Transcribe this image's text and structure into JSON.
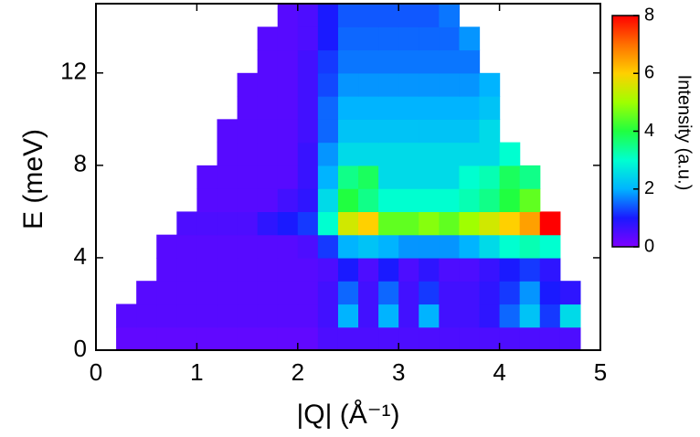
{
  "chart_data": {
    "type": "heatmap",
    "xlabel": "|Q| (Å⁻¹)",
    "ylabel": "E (meV)",
    "colorbar_label": "Intensity (a.u.)",
    "xlim": [
      0,
      5
    ],
    "ylim": [
      0,
      15
    ],
    "xticks": [
      0,
      1,
      2,
      3,
      4,
      5
    ],
    "yticks": [
      0,
      4,
      8,
      12
    ],
    "clim": [
      0,
      8
    ],
    "cticks": [
      0,
      2,
      4,
      6,
      8
    ],
    "colormap": [
      "#7f00ff",
      "#1a1aff",
      "#00b4ff",
      "#00ffd0",
      "#20ff40",
      "#a0ff00",
      "#ffd000",
      "#ff7000",
      "#ff0000"
    ],
    "xbins": [
      0.2,
      0.4,
      0.6,
      0.8,
      1.0,
      1.2,
      1.4,
      1.6,
      1.8,
      2.0,
      2.2,
      2.4,
      2.6,
      2.8,
      3.0,
      3.2,
      3.4,
      3.6,
      3.8,
      4.0,
      4.2,
      4.4,
      4.6,
      4.8
    ],
    "ybins": [
      0,
      1,
      2,
      3,
      4,
      5,
      6,
      7,
      8,
      9,
      10,
      11,
      12,
      13,
      14,
      15
    ],
    "z": [
      [
        0.3,
        0.3,
        0.3,
        0.3,
        0.3,
        0.3,
        0.3,
        0.3,
        0.3,
        0.3,
        0.5,
        0.5,
        0.5,
        0.5,
        0.5,
        0.5,
        0.5,
        0.5,
        0.5,
        0.5,
        0.5,
        0.5,
        0.5
      ],
      [
        0.4,
        0.4,
        0.4,
        0.4,
        0.4,
        0.4,
        0.4,
        0.4,
        0.4,
        0.4,
        0.6,
        2.0,
        0.6,
        2.0,
        0.6,
        2.0,
        0.6,
        0.6,
        0.8,
        1.5,
        2.2,
        1.2,
        2.5
      ],
      [
        null,
        0.4,
        0.4,
        0.4,
        0.4,
        0.4,
        0.4,
        0.4,
        0.4,
        0.4,
        0.6,
        1.5,
        0.6,
        1.5,
        0.6,
        1.2,
        0.6,
        0.6,
        0.8,
        1.2,
        1.8,
        1.0,
        0.8
      ],
      [
        null,
        null,
        0.4,
        0.4,
        0.4,
        0.4,
        0.4,
        0.4,
        0.4,
        0.4,
        0.5,
        1.0,
        0.5,
        1.0,
        0.5,
        0.8,
        0.5,
        0.5,
        0.7,
        1.0,
        1.2,
        0.8,
        null
      ],
      [
        null,
        null,
        0.4,
        0.4,
        0.4,
        0.4,
        0.4,
        0.4,
        0.4,
        0.5,
        1.2,
        2.0,
        2.2,
        2.0,
        1.8,
        1.8,
        1.8,
        2.0,
        2.5,
        3.0,
        3.2,
        3.0,
        null
      ],
      [
        null,
        null,
        null,
        0.5,
        0.5,
        0.5,
        0.5,
        0.8,
        1.0,
        1.2,
        3.0,
        5.5,
        6.0,
        4.5,
        4.5,
        4.8,
        4.5,
        5.0,
        5.5,
        6.0,
        6.5,
        8.0,
        null
      ],
      [
        null,
        null,
        null,
        null,
        0.4,
        0.4,
        0.4,
        0.4,
        0.6,
        0.8,
        2.5,
        4.0,
        3.5,
        3.0,
        3.0,
        3.0,
        3.0,
        3.2,
        3.5,
        4.0,
        4.5,
        null,
        null
      ],
      [
        null,
        null,
        null,
        null,
        0.4,
        0.4,
        0.4,
        0.4,
        0.4,
        0.7,
        2.0,
        3.5,
        3.8,
        2.5,
        2.5,
        2.5,
        2.5,
        3.0,
        3.2,
        3.8,
        3.5,
        null,
        null
      ],
      [
        null,
        null,
        null,
        null,
        null,
        0.4,
        0.4,
        0.4,
        0.4,
        0.7,
        1.8,
        2.5,
        2.5,
        2.5,
        2.5,
        2.5,
        2.5,
        2.5,
        2.5,
        3.0,
        null,
        null,
        null
      ],
      [
        null,
        null,
        null,
        null,
        null,
        0.4,
        0.4,
        0.4,
        0.4,
        0.6,
        1.5,
        2.2,
        2.2,
        2.2,
        2.2,
        2.2,
        2.2,
        2.2,
        2.5,
        null,
        null,
        null,
        null
      ],
      [
        null,
        null,
        null,
        null,
        null,
        null,
        0.4,
        0.4,
        0.4,
        0.6,
        1.5,
        2.0,
        2.0,
        2.0,
        2.0,
        2.0,
        2.0,
        2.0,
        2.2,
        null,
        null,
        null,
        null
      ],
      [
        null,
        null,
        null,
        null,
        null,
        null,
        0.4,
        0.4,
        0.4,
        0.6,
        1.3,
        1.8,
        1.8,
        1.8,
        1.8,
        1.8,
        1.8,
        1.8,
        2.0,
        null,
        null,
        null,
        null
      ],
      [
        null,
        null,
        null,
        null,
        null,
        null,
        null,
        0.4,
        0.4,
        0.6,
        1.2,
        1.6,
        1.6,
        1.6,
        1.6,
        1.6,
        1.6,
        1.6,
        null,
        null,
        null,
        null,
        null
      ],
      [
        null,
        null,
        null,
        null,
        null,
        null,
        null,
        0.4,
        0.4,
        0.5,
        1.0,
        1.5,
        1.5,
        1.5,
        1.5,
        1.5,
        1.5,
        1.8,
        null,
        null,
        null,
        null,
        null
      ],
      [
        null,
        null,
        null,
        null,
        null,
        null,
        null,
        null,
        0.4,
        0.5,
        1.0,
        1.4,
        1.4,
        1.4,
        1.4,
        1.4,
        1.6,
        null,
        null,
        null,
        null,
        null,
        null
      ]
    ]
  }
}
